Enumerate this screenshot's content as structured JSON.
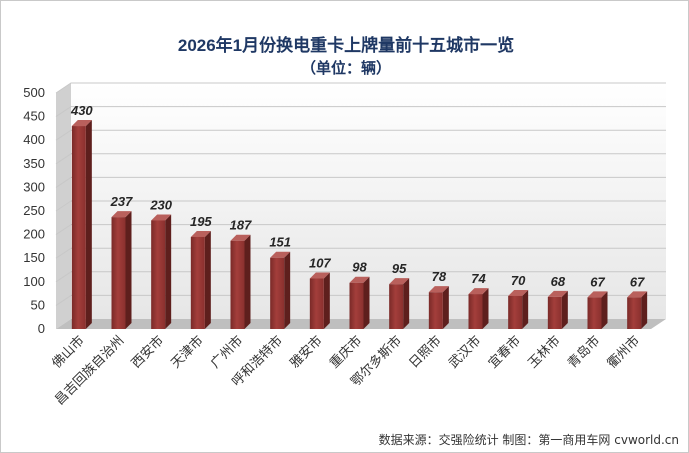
{
  "chart_data": {
    "type": "bar",
    "title": "2026年1月份换电重卡上牌量前十五城市一览",
    "subtitle": "（单位：辆）",
    "categories": [
      "佛山市",
      "昌吉回族自治州",
      "西安市",
      "天津市",
      "广州市",
      "呼和浩特市",
      "雅安市",
      "重庆市",
      "鄂尔多斯市",
      "日照市",
      "武汉市",
      "宜春市",
      "玉林市",
      "青岛市",
      "衢州市"
    ],
    "values": [
      430,
      237,
      230,
      195,
      187,
      151,
      107,
      98,
      95,
      78,
      74,
      70,
      68,
      67,
      67
    ],
    "ylim": [
      0,
      500
    ],
    "yticks": [
      0,
      50,
      100,
      150,
      200,
      250,
      300,
      350,
      400,
      450,
      500
    ],
    "xlabel": "",
    "ylabel": "",
    "grid": true,
    "legend": "none",
    "data_labels": true,
    "bar_color": "#943634",
    "source_note": "数据来源：交强险统计  制图：第一商用车网 cvworld.cn"
  }
}
